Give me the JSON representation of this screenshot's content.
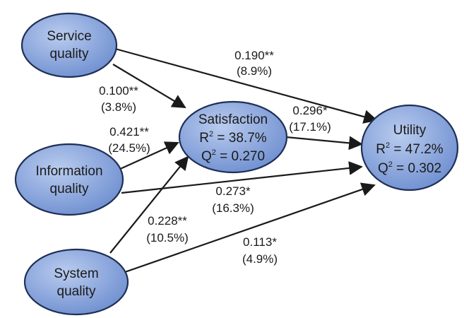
{
  "colors": {
    "node_fill": "#7f9fd8",
    "node_stroke": "#1f2f55",
    "arrow": "#1a1a1a",
    "text": "#1a1a1a"
  },
  "nodes": {
    "service_quality": {
      "line1": "Service",
      "line2": "quality"
    },
    "information_quality": {
      "line1": "Information",
      "line2": "quality"
    },
    "system_quality": {
      "line1": "System",
      "line2": "quality"
    },
    "satisfaction": {
      "title": "Satisfaction",
      "r2_prefix": "R",
      "r2_exp": "2",
      "r2_value": " = 38.7%",
      "q2_prefix": "Q",
      "q2_exp": "2",
      "q2_value": " = 0.270"
    },
    "utility": {
      "title": "Utility",
      "r2_prefix": "R",
      "r2_exp": "2",
      "r2_value": " = 47.2%",
      "q2_prefix": "Q",
      "q2_exp": "2",
      "q2_value": " = 0.302"
    }
  },
  "paths": {
    "service_to_utility": {
      "coef": "0.190**",
      "effect": "(8.9%)"
    },
    "service_to_satisfaction": {
      "coef": "0.100**",
      "effect": "(3.8%)"
    },
    "information_to_satisfaction": {
      "coef": "0.421**",
      "effect": "(24.5%)"
    },
    "satisfaction_to_utility": {
      "coef": "0.296*",
      "effect": "(17.1%)"
    },
    "information_to_utility": {
      "coef": "0.273*",
      "effect": "(16.3%)"
    },
    "system_to_satisfaction": {
      "coef": "0.228**",
      "effect": "(10.5%)"
    },
    "system_to_utility": {
      "coef": "0.113*",
      "effect": "(4.9%)"
    }
  }
}
